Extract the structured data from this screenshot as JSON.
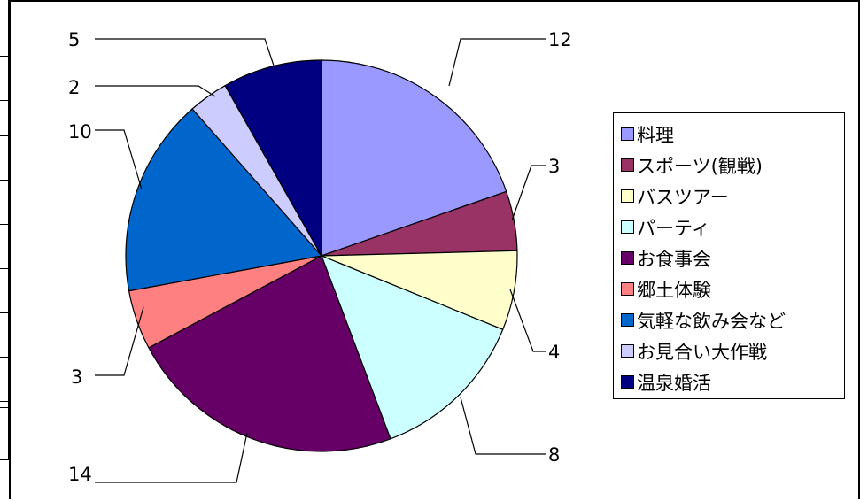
{
  "chart_data": {
    "type": "pie",
    "title": "",
    "slices": [
      {
        "label": "料理",
        "value": 12,
        "color": "#9999ff"
      },
      {
        "label": "スポーツ(観戦)",
        "value": 3,
        "color": "#993366"
      },
      {
        "label": "バスツアー",
        "value": 4,
        "color": "#ffffcc"
      },
      {
        "label": "パーティ",
        "value": 8,
        "color": "#ccffff"
      },
      {
        "label": "お食事会",
        "value": 14,
        "color": "#660066"
      },
      {
        "label": "郷土体験",
        "value": 3,
        "color": "#ff8080"
      },
      {
        "label": "気軽な飲み会など",
        "value": 10,
        "color": "#0066cc"
      },
      {
        "label": "お見合い大作戦",
        "value": 2,
        "color": "#ccccff"
      },
      {
        "label": "温泉婚活",
        "value": 5,
        "color": "#000080"
      }
    ],
    "start_angle": "12 o'clock",
    "direction": "clockwise",
    "legend_position": "right",
    "data_labels": "values with leader lines"
  }
}
